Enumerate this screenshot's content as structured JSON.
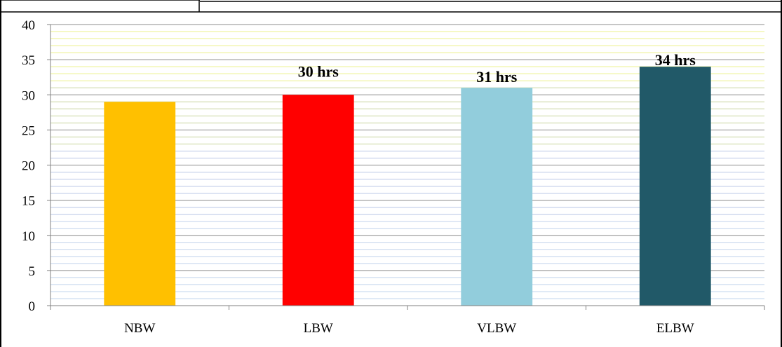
{
  "chart_data": {
    "type": "bar",
    "categories": [
      "NBW",
      "LBW",
      "VLBW",
      "ELBW"
    ],
    "values": [
      29,
      30,
      31,
      34
    ],
    "data_labels": [
      "",
      "30 hrs",
      "31 hrs",
      "34 hrs"
    ],
    "colors": [
      "#FFC000",
      "#FF0000",
      "#92CDDC",
      "#215968"
    ],
    "ylim": [
      0,
      40
    ],
    "yticks": [
      "0",
      "5",
      "10",
      "15",
      "20",
      "25",
      "30",
      "35",
      "40"
    ],
    "title": "",
    "xlabel": "",
    "ylabel": "",
    "grid": true,
    "legend": "none"
  }
}
